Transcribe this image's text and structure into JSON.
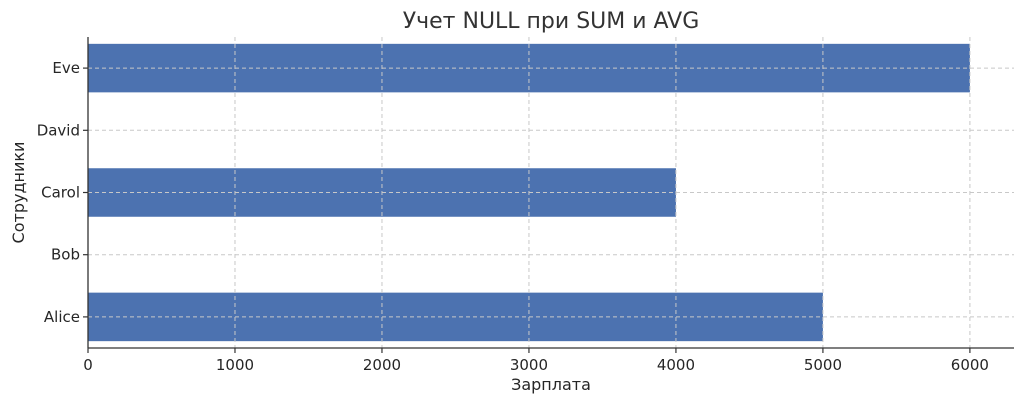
{
  "chart_data": {
    "type": "bar",
    "orientation": "horizontal",
    "title": "Учет NULL при SUM и AVG",
    "xlabel": "Зарплата",
    "ylabel": "Сотрудники",
    "categories": [
      "Alice",
      "Bob",
      "Carol",
      "David",
      "Eve"
    ],
    "values": [
      5000,
      null,
      4000,
      null,
      6000
    ],
    "xlim": [
      0,
      6300
    ],
    "xticks": [
      0,
      1000,
      2000,
      3000,
      4000,
      5000,
      6000
    ],
    "grid": true,
    "bar_color": "#4c72b0"
  }
}
